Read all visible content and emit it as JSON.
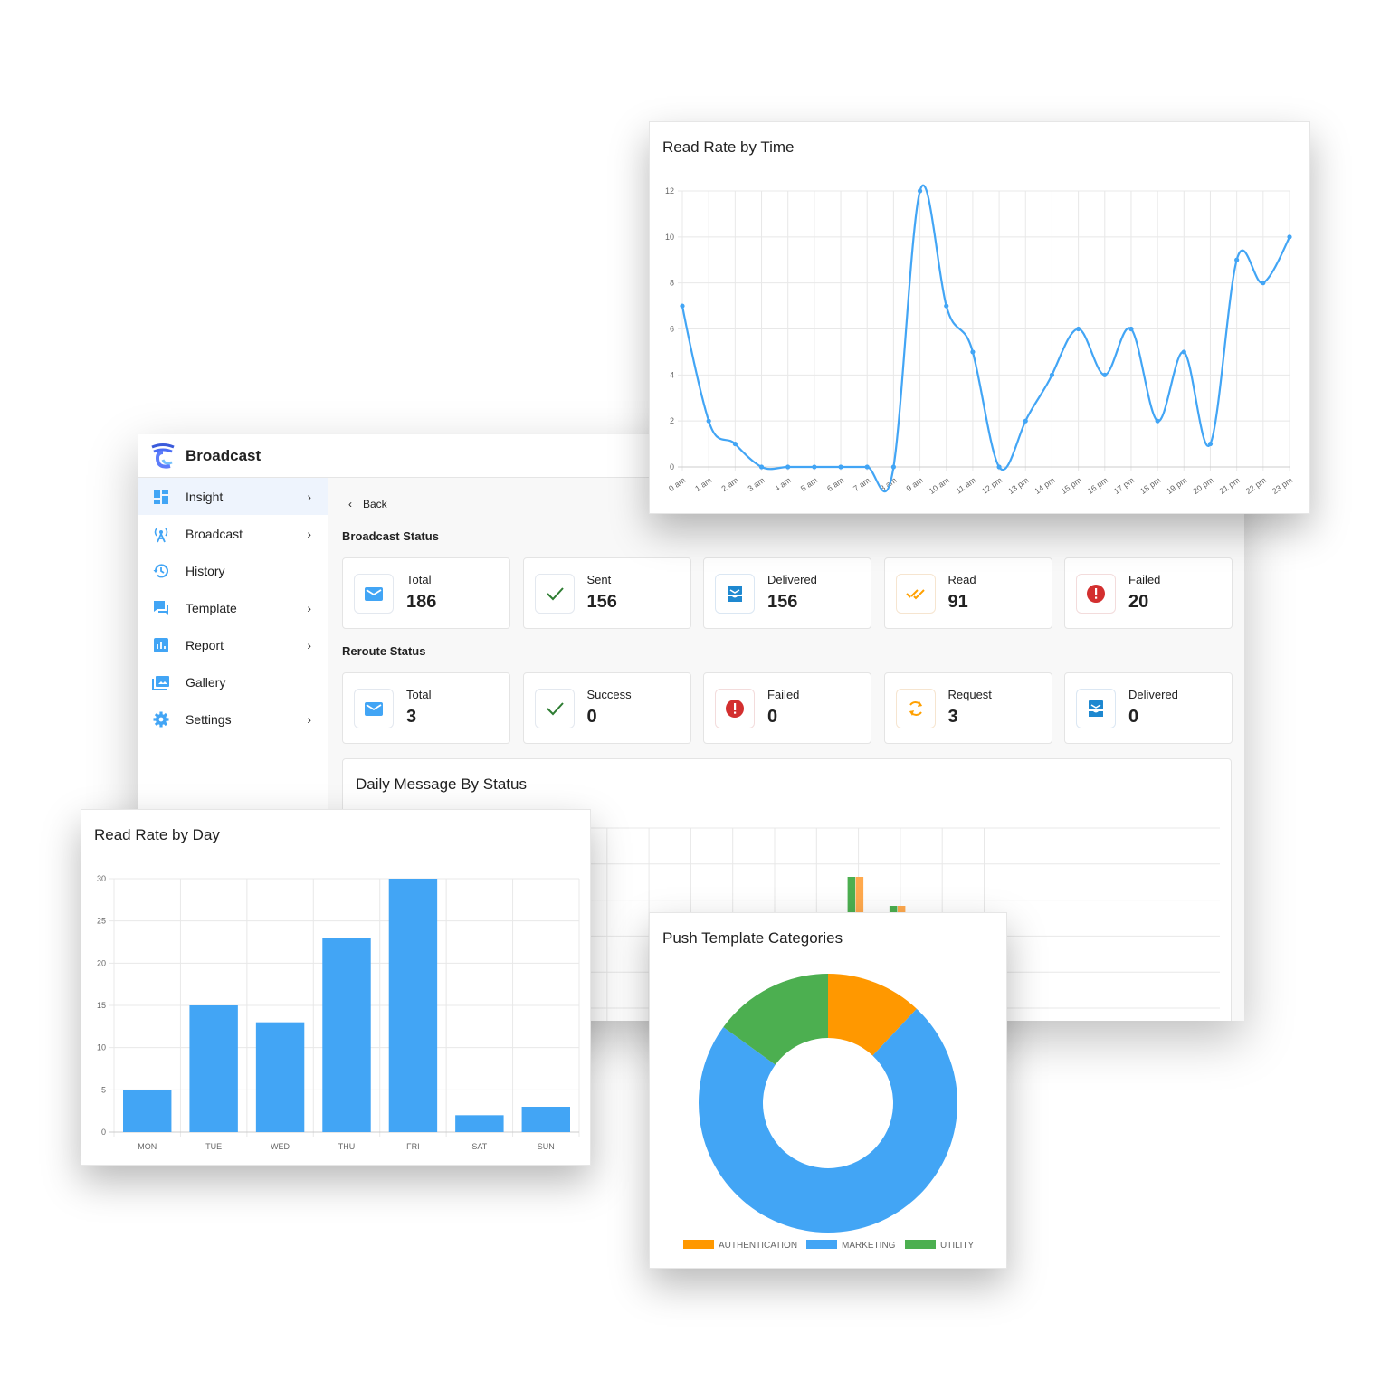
{
  "app": {
    "brand": "Broadcast",
    "back": "Back",
    "broadcast_status_title": "Broadcast Status",
    "reroute_status_title": "Reroute Status",
    "daily_title": "Daily Message By Status"
  },
  "sidebar": {
    "items": [
      {
        "label": "Insight",
        "icon": "dashboard-icon",
        "chevron": true,
        "active": true
      },
      {
        "label": "Broadcast",
        "icon": "broadcast-tower-icon",
        "chevron": true
      },
      {
        "label": "History",
        "icon": "history-icon",
        "chevron": false
      },
      {
        "label": "Template",
        "icon": "chat-icon",
        "chevron": true
      },
      {
        "label": "Report",
        "icon": "report-chart-icon",
        "chevron": true
      },
      {
        "label": "Gallery",
        "icon": "gallery-icon",
        "chevron": false
      },
      {
        "label": "Settings",
        "icon": "gear-icon",
        "chevron": true
      }
    ]
  },
  "broadcast_status": [
    {
      "label": "Total",
      "value": "186",
      "icon": "mail-icon"
    },
    {
      "label": "Sent",
      "value": "156",
      "icon": "check-icon"
    },
    {
      "label": "Delivered",
      "value": "156",
      "icon": "inbox-icon"
    },
    {
      "label": "Read",
      "value": "91",
      "icon": "double-check-icon"
    },
    {
      "label": "Failed",
      "value": "20",
      "icon": "alert-icon"
    }
  ],
  "reroute_status": [
    {
      "label": "Total",
      "value": "3",
      "icon": "mail-icon"
    },
    {
      "label": "Success",
      "value": "0",
      "icon": "check-icon"
    },
    {
      "label": "Failed",
      "value": "0",
      "icon": "alert-icon"
    },
    {
      "label": "Request",
      "value": "3",
      "icon": "refresh-icon"
    },
    {
      "label": "Delivered",
      "value": "0",
      "icon": "inbox-icon"
    }
  ],
  "colors": {
    "blue": "#42a5f5",
    "green": "#4caf50",
    "orange": "#ff9800",
    "red": "#d32f2f"
  },
  "chart_data": [
    {
      "type": "line",
      "title": "Read Rate by Time",
      "categories": [
        "0 am",
        "1 am",
        "2 am",
        "3 am",
        "4 am",
        "5 am",
        "6 am",
        "7 am",
        "8 am",
        "9 am",
        "10 am",
        "11 am",
        "12 pm",
        "13 pm",
        "14 pm",
        "15 pm",
        "16 pm",
        "17 pm",
        "18 pm",
        "19 pm",
        "20 pm",
        "21 pm",
        "22 pm",
        "23 pm"
      ],
      "values": [
        7,
        2,
        1,
        0,
        0,
        0,
        0,
        0,
        0,
        12,
        7,
        5,
        0,
        2,
        4,
        6,
        4,
        6,
        2,
        5,
        1,
        9,
        8,
        10
      ],
      "ylim": [
        0,
        12
      ],
      "yticks": [
        0,
        2,
        4,
        6,
        8,
        10,
        12
      ],
      "grid": true,
      "color": "#42a5f5"
    },
    {
      "type": "bar",
      "title": "Read Rate by Day",
      "categories": [
        "MON",
        "TUE",
        "WED",
        "THU",
        "FRI",
        "SAT",
        "SUN"
      ],
      "values": [
        5,
        15,
        13,
        23,
        30,
        2,
        3
      ],
      "ylim": [
        0,
        30
      ],
      "yticks": [
        0,
        5,
        10,
        15,
        20,
        25,
        30
      ],
      "grid": true,
      "color": "#42a5f5"
    },
    {
      "type": "pie",
      "title": "Push Template Categories",
      "donut": true,
      "labels": [
        "AUTHENTICATION",
        "MARKETING",
        "UTILITY"
      ],
      "values": [
        12,
        73,
        15
      ],
      "colors": [
        "#ff9800",
        "#42a5f5",
        "#4caf50"
      ],
      "legend": "bottom"
    },
    {
      "type": "bar",
      "title": "Daily Message By Status",
      "partially_hidden": true,
      "grid": true,
      "groups": [
        {
          "index": 11,
          "bars": [
            {
              "color": "#f06b6b",
              "value": 0.2
            }
          ]
        },
        {
          "index": 12,
          "bars": [
            {
              "color": "#4caf50",
              "value": 5.0
            },
            {
              "color": "#ffa94d",
              "value": 5.0
            },
            {
              "color": "#4db6f5",
              "value": 2.4
            }
          ]
        },
        {
          "index": 13,
          "bars": [
            {
              "color": "#4caf50",
              "value": 4.0
            },
            {
              "color": "#ffa94d",
              "value": 4.0
            },
            {
              "color": "#4db6f5",
              "value": 1.6
            }
          ]
        }
      ]
    }
  ]
}
